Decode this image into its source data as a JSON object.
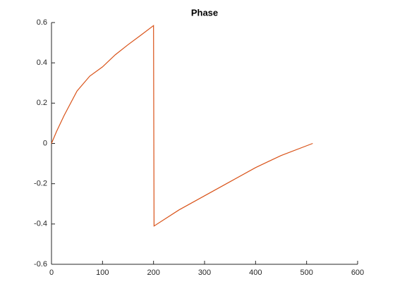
{
  "chart_data": {
    "type": "line",
    "title": "Phase",
    "x": [
      0,
      10,
      25,
      50,
      75,
      100,
      125,
      150,
      175,
      200,
      201,
      250,
      300,
      350,
      400,
      450,
      512
    ],
    "series": [
      {
        "color": "#D95319",
        "values": [
          0,
          0.06,
          0.14,
          0.26,
          0.334,
          0.38,
          0.44,
          0.49,
          0.537,
          0.585,
          -0.41,
          -0.33,
          -0.26,
          -0.19,
          -0.12,
          -0.06,
          0
        ]
      }
    ],
    "xlim": [
      0,
      600
    ],
    "xticks": [
      0,
      100,
      200,
      300,
      400,
      500,
      600
    ],
    "ylim": [
      -0.6,
      0.6
    ],
    "yticks": [
      -0.6,
      -0.4,
      -0.2,
      0,
      0.2,
      0.4,
      0.6
    ]
  }
}
